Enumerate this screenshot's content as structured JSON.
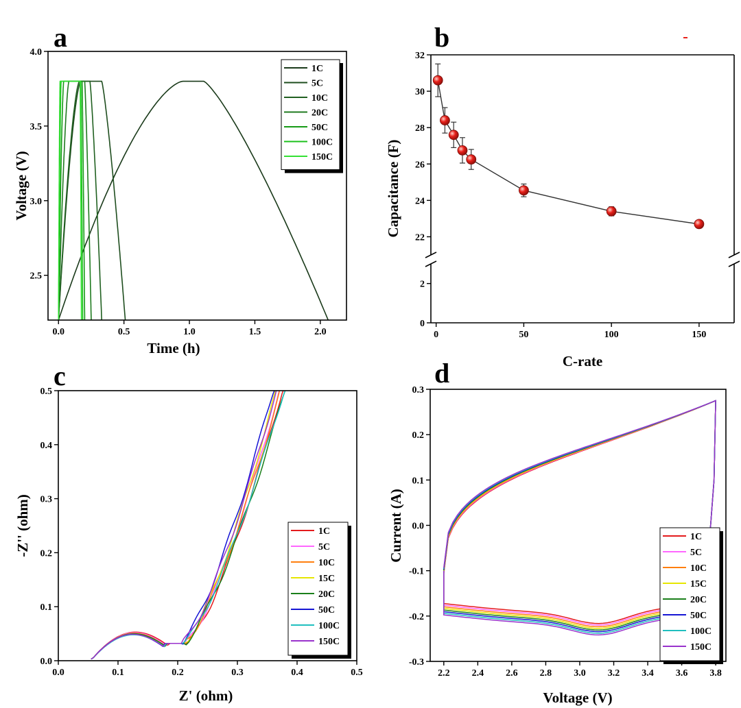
{
  "chart_data": [
    {
      "panel": "a",
      "type": "line",
      "xlabel": "Time (h)",
      "ylabel": "Voltage (V)",
      "xlim": [
        -0.08,
        2.2
      ],
      "ylim": [
        2.2,
        4.0
      ],
      "xticks": [
        "0.0",
        "0.5",
        "1.0",
        "1.5",
        "2.0"
      ],
      "yticks": [
        "2.5",
        "3.0",
        "3.5",
        "4.0"
      ],
      "legend_position": "top-right",
      "series": [
        {
          "name": "1C",
          "color": "#1a3a1a",
          "charge_end": 0.95,
          "hold_end": 1.11,
          "discharge_end": 2.06
        },
        {
          "name": "5C",
          "color": "#1e4d1e",
          "charge_end": 0.17,
          "hold_end": 0.33,
          "discharge_end": 0.51
        },
        {
          "name": "10C",
          "color": "#206020",
          "charge_end": 0.16,
          "hold_end": 0.24,
          "discharge_end": 0.33
        },
        {
          "name": "20C",
          "color": "#1f7a1f",
          "charge_end": 0.08,
          "hold_end": 0.2,
          "discharge_end": 0.25
        },
        {
          "name": "50C",
          "color": "#159a15",
          "charge_end": 0.04,
          "hold_end": 0.18,
          "discharge_end": 0.2
        },
        {
          "name": "100C",
          "color": "#1bc01b",
          "charge_end": 0.02,
          "hold_end": 0.17,
          "discharge_end": 0.185
        },
        {
          "name": "150C",
          "color": "#33e033",
          "charge_end": 0.012,
          "hold_end": 0.165,
          "discharge_end": 0.175
        }
      ]
    },
    {
      "panel": "b",
      "type": "scatter",
      "xlabel": "C-rate",
      "ylabel": "Capacitance (F)",
      "xlim": [
        -3,
        170
      ],
      "ylim_lower": [
        0,
        3
      ],
      "ylim_upper": [
        21,
        32
      ],
      "xticks": [
        "0",
        "50",
        "100",
        "150"
      ],
      "yticks_lower": [
        "0",
        "2"
      ],
      "yticks_upper": [
        "22",
        "24",
        "26",
        "28",
        "30",
        "32"
      ],
      "marker_color": "#e8201a",
      "x": [
        1,
        5,
        10,
        15,
        20,
        50,
        100,
        150
      ],
      "y": [
        30.6,
        28.4,
        27.6,
        26.75,
        26.25,
        24.55,
        23.4,
        22.7
      ],
      "error": [
        0.9,
        0.7,
        0.7,
        0.7,
        0.55,
        0.35,
        0.25,
        0.15
      ]
    },
    {
      "panel": "c",
      "type": "line",
      "xlabel": "Z' (ohm)",
      "ylabel": "-Z'' (ohm)",
      "xlim": [
        0.0,
        0.5
      ],
      "ylim": [
        0.0,
        0.5
      ],
      "xticks": [
        "0.0",
        "0.1",
        "0.2",
        "0.3",
        "0.4",
        "0.5"
      ],
      "yticks": [
        "0.0",
        "0.1",
        "0.2",
        "0.3",
        "0.4",
        "0.5"
      ],
      "legend_position": "bottom-right",
      "series": [
        {
          "name": "1C",
          "color": "#e41a1c",
          "start": 0.055,
          "arc_top": 0.053,
          "valley_x": 0.215,
          "end_x": 0.375
        },
        {
          "name": "5C",
          "color": "#ff66ff",
          "start": 0.055,
          "arc_top": 0.052,
          "valley_x": 0.212,
          "end_x": 0.37
        },
        {
          "name": "10C",
          "color": "#ff7f0e",
          "start": 0.055,
          "arc_top": 0.051,
          "valley_x": 0.21,
          "end_x": 0.372
        },
        {
          "name": "15C",
          "color": "#e6e600",
          "start": 0.055,
          "arc_top": 0.05,
          "valley_x": 0.21,
          "end_x": 0.365
        },
        {
          "name": "20C",
          "color": "#1a7f1a",
          "start": 0.055,
          "arc_top": 0.05,
          "valley_x": 0.21,
          "end_x": 0.38
        },
        {
          "name": "50C",
          "color": "#1515d4",
          "start": 0.055,
          "arc_top": 0.049,
          "valley_x": 0.205,
          "end_x": 0.36
        },
        {
          "name": "100C",
          "color": "#1fbfbf",
          "start": 0.055,
          "arc_top": 0.048,
          "valley_x": 0.208,
          "end_x": 0.378
        },
        {
          "name": "150C",
          "color": "#9932cc",
          "start": 0.055,
          "arc_top": 0.049,
          "valley_x": 0.206,
          "end_x": 0.365
        }
      ]
    },
    {
      "panel": "d",
      "type": "line",
      "xlabel": "Voltage (V)",
      "ylabel": "Current (A)",
      "xlim": [
        2.12,
        3.86
      ],
      "ylim": [
        -0.3,
        0.3
      ],
      "xticks": [
        "2.2",
        "2.4",
        "2.6",
        "2.8",
        "3.0",
        "3.2",
        "3.4",
        "3.6",
        "3.8"
      ],
      "yticks": [
        "-0.3",
        "-0.2",
        "-0.1",
        "0.0",
        "0.1",
        "0.2",
        "0.3"
      ],
      "legend_position": "bottom-right",
      "series": [
        {
          "name": "1C",
          "color": "#e41a1c"
        },
        {
          "name": "5C",
          "color": "#ff66ff"
        },
        {
          "name": "10C",
          "color": "#ff7f0e"
        },
        {
          "name": "15C",
          "color": "#e6e600"
        },
        {
          "name": "20C",
          "color": "#1a7f1a"
        },
        {
          "name": "50C",
          "color": "#1515d4"
        },
        {
          "name": "100C",
          "color": "#1fbfbf"
        },
        {
          "name": "150C",
          "color": "#9932cc"
        }
      ]
    }
  ]
}
